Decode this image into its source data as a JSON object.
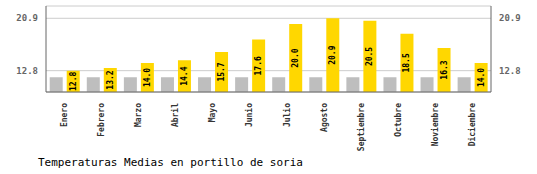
{
  "chart_data": {
    "type": "bar",
    "title": "Temperaturas Medias en portillo de soria",
    "categories": [
      "Enero",
      "Febrero",
      "Marzo",
      "Abril",
      "Mayo",
      "Junio",
      "Julio",
      "Agosto",
      "Septiembre",
      "Octubre",
      "Noviembre",
      "Diciembre"
    ],
    "series": [
      {
        "color": "#BEBEBE",
        "values": [
          11.8,
          11.8,
          11.8,
          11.8,
          11.8,
          11.8,
          11.8,
          11.8,
          11.8,
          11.8,
          11.8,
          11.8
        ]
      },
      {
        "color": "#FFD700",
        "data_labels": true,
        "values": [
          12.8,
          13.2,
          14.0,
          14.4,
          15.7,
          17.6,
          20.0,
          20.9,
          20.5,
          18.5,
          16.3,
          14.0
        ],
        "value_labels": [
          "12.8",
          "13.2",
          "14.0",
          "14.4",
          "15.7",
          "17.6",
          "20.0",
          "20.9",
          "20.5",
          "18.5",
          "16.3",
          "14.0"
        ]
      }
    ],
    "ylim": [
      9.5,
      22.8
    ],
    "yticks": [
      12.8,
      20.9
    ],
    "y2lim": [
      9.5,
      22.8
    ],
    "y2ticks": [
      12.8,
      20.9
    ],
    "grid": true
  }
}
